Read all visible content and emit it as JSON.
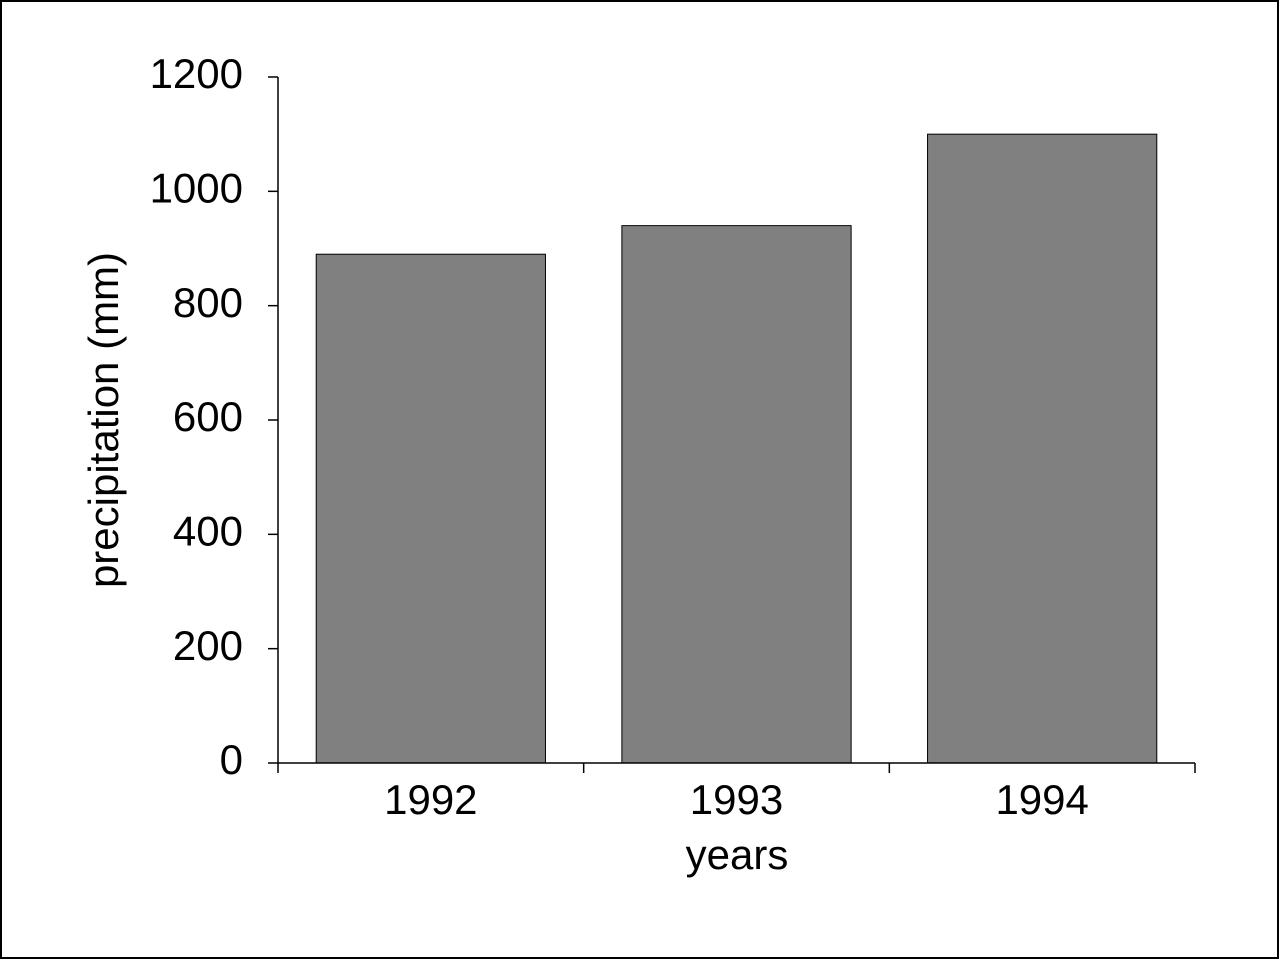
{
  "chart_data": {
    "type": "bar",
    "x_label": "years",
    "y_label": "precipitation (mm)",
    "categories": [
      "1992",
      "1993",
      "1994"
    ],
    "values": [
      890,
      940,
      1100
    ],
    "color": "#808080",
    "ylim": [
      0,
      1200
    ],
    "yticks": [
      0,
      200,
      400,
      600,
      800,
      1000,
      1200
    ]
  }
}
